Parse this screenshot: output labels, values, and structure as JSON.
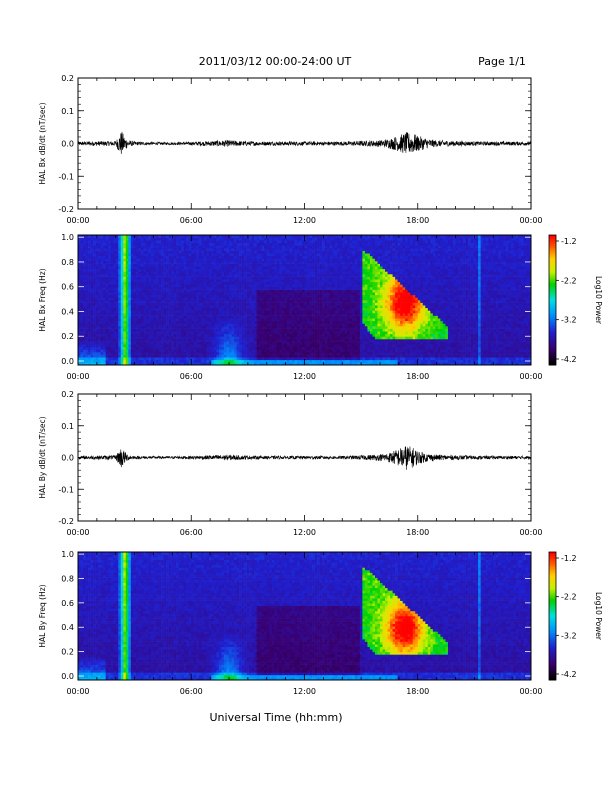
{
  "header": {
    "title": "2011/03/12  00:00-24:00 UT",
    "page": "Page 1/1"
  },
  "xlabel": "Universal Time (hh:mm)",
  "time_ticks": [
    "00:00",
    "06:00",
    "12:00",
    "18:00",
    "00:00"
  ],
  "colorbar": {
    "label": "Log10 Power",
    "ticks": [
      "-1.2",
      "-2.2",
      "-3.2",
      "-4.2"
    ],
    "colors": [
      "#000000",
      "#3a0070",
      "#2020d0",
      "#0090ff",
      "#00e0e0",
      "#00d000",
      "#c8f000",
      "#ffd000",
      "#ff6000",
      "#ff0000"
    ]
  },
  "chart_data": [
    {
      "type": "line",
      "ylabel": "HAL Bx dB/dt (nT/sec)",
      "ylim": [
        -0.2,
        0.2
      ],
      "yticks": [
        "0.2",
        "0.1",
        "0.0",
        "-0.1",
        "-0.2"
      ],
      "xlim_hours": [
        0,
        24
      ],
      "envelope": {
        "x_hours": [
          0,
          1,
          2,
          2.3,
          2.5,
          2.7,
          3,
          4,
          5,
          6,
          7,
          8,
          8.5,
          9,
          10,
          11,
          12,
          13,
          14,
          15,
          16,
          16.5,
          17,
          17.4,
          17.8,
          18,
          18.5,
          19,
          20,
          21,
          22,
          23,
          24
        ],
        "amplitude": [
          0.006,
          0.007,
          0.008,
          0.04,
          0.02,
          0.01,
          0.006,
          0.004,
          0.004,
          0.005,
          0.008,
          0.01,
          0.008,
          0.007,
          0.006,
          0.006,
          0.006,
          0.006,
          0.006,
          0.008,
          0.01,
          0.015,
          0.025,
          0.035,
          0.03,
          0.025,
          0.015,
          0.01,
          0.008,
          0.006,
          0.006,
          0.006,
          0.006
        ]
      }
    },
    {
      "type": "heatmap",
      "ylabel": "HAL Bx Freq (Hz)",
      "ylim": [
        0,
        1.0
      ],
      "yticks": [
        "1.0",
        "0.8",
        "0.6",
        "0.4",
        "0.2",
        "0.0"
      ],
      "xlim_hours": [
        0,
        24
      ],
      "zlim": [
        -4.2,
        -1.2
      ],
      "colorbar_ticks": [
        "-1.2",
        "-2.2",
        "-3.2",
        "-4.2"
      ]
    },
    {
      "type": "line",
      "ylabel": "HAL By dB/dt (nT/sec)",
      "ylim": [
        -0.2,
        0.2
      ],
      "yticks": [
        "0.2",
        "0.1",
        "0.0",
        "-0.1",
        "-0.2"
      ],
      "xlim_hours": [
        0,
        24
      ],
      "envelope": {
        "x_hours": [
          0,
          1,
          2,
          2.3,
          2.5,
          2.7,
          3,
          4,
          5,
          6,
          7,
          8,
          8.5,
          9,
          10,
          11,
          12,
          13,
          14,
          15,
          16,
          16.5,
          17,
          17.4,
          17.8,
          18,
          18.5,
          19,
          20,
          21,
          22,
          23,
          24
        ],
        "amplitude": [
          0.005,
          0.006,
          0.007,
          0.035,
          0.018,
          0.008,
          0.005,
          0.004,
          0.004,
          0.005,
          0.007,
          0.009,
          0.007,
          0.006,
          0.005,
          0.005,
          0.005,
          0.005,
          0.005,
          0.007,
          0.01,
          0.016,
          0.028,
          0.04,
          0.03,
          0.022,
          0.013,
          0.009,
          0.007,
          0.006,
          0.005,
          0.005,
          0.005
        ]
      }
    },
    {
      "type": "heatmap",
      "ylabel": "HAL By Freq (Hz)",
      "ylim": [
        0,
        1.0
      ],
      "yticks": [
        "1.0",
        "0.8",
        "0.6",
        "0.4",
        "0.2",
        "0.0"
      ],
      "xlim_hours": [
        0,
        24
      ],
      "zlim": [
        -4.2,
        -1.2
      ],
      "colorbar_ticks": [
        "-1.2",
        "-2.2",
        "-3.2",
        "-4.2"
      ]
    }
  ]
}
